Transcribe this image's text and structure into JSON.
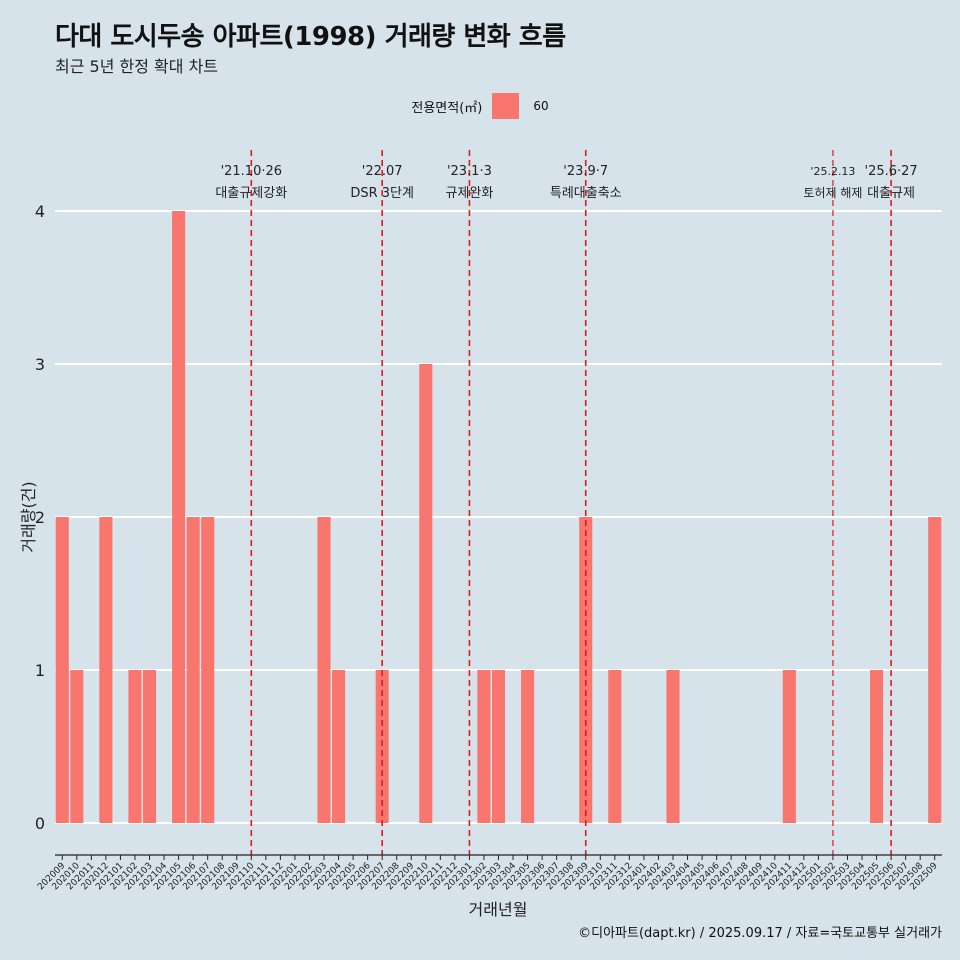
{
  "title": "다대 도시두송 아파트(1998) 거래량 변화 흐름",
  "subtitle": "최근 5년 한정 확대 차트",
  "legend": {
    "title": "전용면적(㎡)",
    "label": "60"
  },
  "caption": "©디아파트(dapt.kr) / 2025.09.17 / 자료=국토교통부 실거래가",
  "colors": {
    "background": "#d6e3ea",
    "bar": "#f8766d",
    "grid": "#ffffff",
    "event_line": "#e31a1c"
  },
  "chart_data": {
    "type": "bar",
    "title": "다대 도시두송 아파트(1998) 거래량 변화 흐름",
    "xlabel": "거래년월",
    "ylabel": "거래량(건)",
    "ylim": [
      0,
      4
    ],
    "yticks": [
      0,
      1,
      2,
      3,
      4
    ],
    "categories": [
      "202009",
      "202010",
      "202011",
      "202012",
      "202101",
      "202102",
      "202103",
      "202104",
      "202105",
      "202106",
      "202107",
      "202108",
      "202109",
      "202110",
      "202111",
      "202112",
      "202201",
      "202202",
      "202203",
      "202204",
      "202205",
      "202206",
      "202207",
      "202208",
      "202209",
      "202210",
      "202211",
      "202212",
      "202301",
      "202302",
      "202303",
      "202304",
      "202305",
      "202306",
      "202307",
      "202308",
      "202309",
      "202310",
      "202311",
      "202312",
      "202401",
      "202402",
      "202403",
      "202404",
      "202405",
      "202406",
      "202407",
      "202408",
      "202409",
      "202410",
      "202411",
      "202412",
      "202501",
      "202502",
      "202503",
      "202504",
      "202505",
      "202506",
      "202507",
      "202508",
      "202509"
    ],
    "series": [
      {
        "name": "60",
        "values": [
          2,
          1,
          0,
          2,
          0,
          1,
          1,
          0,
          4,
          2,
          2,
          0,
          0,
          0,
          0,
          0,
          0,
          0,
          2,
          1,
          0,
          0,
          1,
          0,
          0,
          3,
          0,
          0,
          0,
          1,
          1,
          0,
          1,
          0,
          0,
          0,
          2,
          0,
          1,
          0,
          0,
          0,
          1,
          0,
          0,
          0,
          0,
          0,
          0,
          0,
          1,
          0,
          0,
          0,
          0,
          0,
          1,
          0,
          0,
          0,
          2
        ]
      }
    ],
    "events": [
      {
        "date_label": "'21.10·26",
        "text": "대출규제강화",
        "x": "202110",
        "style": "major"
      },
      {
        "date_label": "'22.07",
        "text": "DSR 3단계",
        "x": "202207",
        "style": "major"
      },
      {
        "date_label": "'23.1·3",
        "text": "규제완화",
        "x": "202301",
        "style": "major"
      },
      {
        "date_label": "'23.9·7",
        "text": "특례대출축소",
        "x": "202309",
        "style": "major"
      },
      {
        "date_label": "'25.2.13",
        "text": "토허제 해제",
        "x": "202502",
        "style": "minor"
      },
      {
        "date_label": "'25.6·27",
        "text": "대출규제",
        "x": "202506",
        "style": "major"
      }
    ]
  }
}
